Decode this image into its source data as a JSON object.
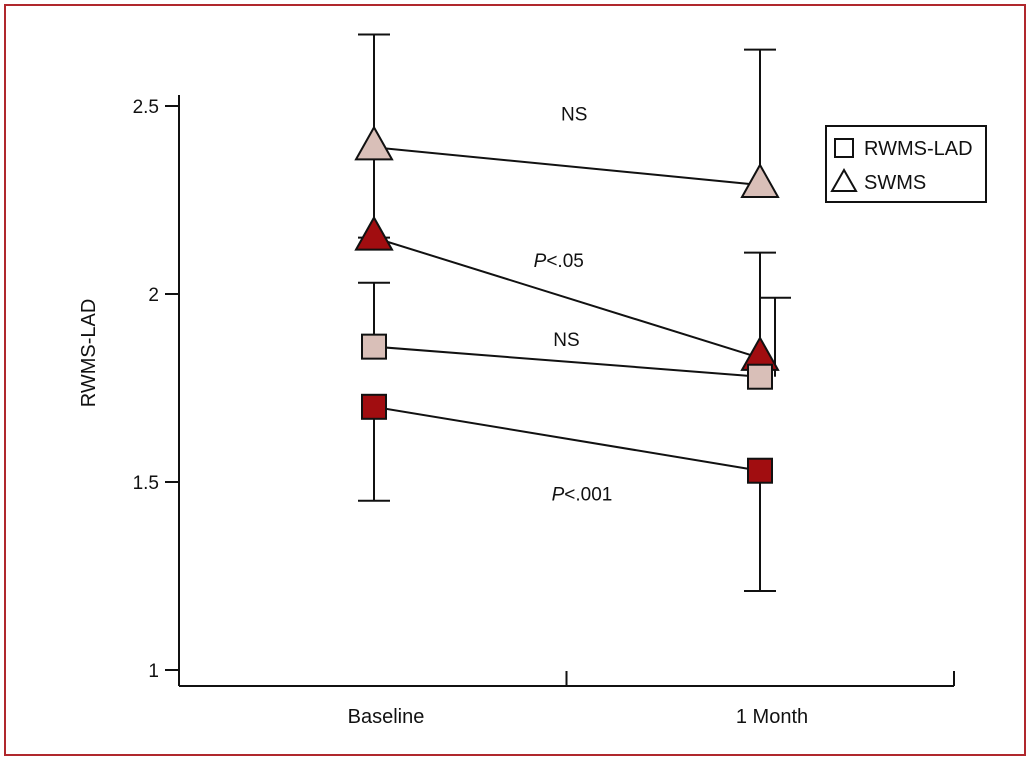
{
  "chart_data": {
    "type": "scatter",
    "title": "",
    "xlabel": "",
    "ylabel": "RWMS-LAD",
    "categories": [
      "Baseline",
      "1 Month"
    ],
    "ylim": [
      1,
      2.5
    ],
    "yticks": [
      "1",
      "1.5",
      "2",
      "2.5"
    ],
    "grid": false,
    "legend": {
      "position": "top-right",
      "entries": [
        {
          "label": "RWMS-LAD",
          "marker": "square"
        },
        {
          "label": "SWMS",
          "marker": "triangle"
        }
      ]
    },
    "series": [
      {
        "marker": "triangle",
        "color": "#d9bfb8",
        "values": [
          2.39,
          2.29
        ],
        "err_upper": [
          2.69,
          2.65
        ],
        "err_lower": [
          2.15,
          null
        ]
      },
      {
        "marker": "triangle",
        "color": "#a10d10",
        "values": [
          2.15,
          1.83
        ],
        "err_upper": [
          null,
          2.11
        ],
        "err_lower": [
          null,
          null
        ]
      },
      {
        "marker": "square",
        "color": "#d9bfb8",
        "values": [
          1.86,
          1.78
        ],
        "err_upper": [
          2.03,
          1.99
        ],
        "err_lower": [
          null,
          null
        ]
      },
      {
        "marker": "square",
        "color": "#a10d10",
        "values": [
          1.7,
          1.53
        ],
        "err_upper": [
          null,
          null
        ],
        "err_lower": [
          1.45,
          1.21
        ]
      }
    ],
    "annotations": [
      {
        "prefix": "",
        "text": "NS",
        "x": 0.51,
        "y": 2.48
      },
      {
        "prefix": "P",
        "text": "<.05",
        "x": 0.49,
        "y": 2.09
      },
      {
        "prefix": "",
        "text": "NS",
        "x": 0.5,
        "y": 1.88
      },
      {
        "prefix": "P",
        "text": "<.001",
        "x": 0.52,
        "y": 1.47
      }
    ]
  }
}
